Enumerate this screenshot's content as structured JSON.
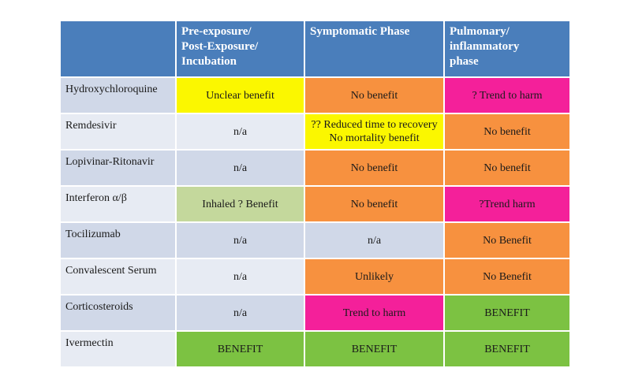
{
  "table": {
    "header": [
      "Pre-exposure/\nPost-Exposure/\nIncubation",
      "Symptomatic Phase",
      "Pulmonary/\ninflammatory\nphase"
    ],
    "rows": [
      {
        "label": "Hydroxychloroquine",
        "cells": [
          {
            "text": "Unclear benefit",
            "color": "#fbf700"
          },
          {
            "text": "No benefit",
            "color": "#f7913f"
          },
          {
            "text": "? Trend to harm",
            "color": "#f4209a"
          }
        ]
      },
      {
        "label": "Remdesivir",
        "cells": [
          {
            "text": "n/a",
            "color": "#e7ebf3"
          },
          {
            "text": "?? Reduced time to recovery\nNo mortality benefit",
            "color": "#fbf700"
          },
          {
            "text": "No benefit",
            "color": "#f7913f"
          }
        ]
      },
      {
        "label": "Lopivinar-Ritonavir",
        "cells": [
          {
            "text": "n/a",
            "color": "#d0d8e8"
          },
          {
            "text": "No benefit",
            "color": "#f7913f"
          },
          {
            "text": "No benefit",
            "color": "#f7913f"
          }
        ]
      },
      {
        "label": "Interferon α/β",
        "cells": [
          {
            "text": "Inhaled ? Benefit",
            "color": "#c4d89c"
          },
          {
            "text": "No benefit",
            "color": "#f7913f"
          },
          {
            "text": "?Trend harm",
            "color": "#f4209a"
          }
        ]
      },
      {
        "label": "Tocilizumab",
        "cells": [
          {
            "text": "n/a",
            "color": "#d0d8e8"
          },
          {
            "text": "n/a",
            "color": "#d0d8e8"
          },
          {
            "text": "No Benefit",
            "color": "#f7913f"
          }
        ]
      },
      {
        "label": "Convalescent Serum",
        "cells": [
          {
            "text": "n/a",
            "color": "#e7ebf3"
          },
          {
            "text": "Unlikely",
            "color": "#f7913f"
          },
          {
            "text": "No Benefit",
            "color": "#f7913f"
          }
        ]
      },
      {
        "label": "Corticosteroids",
        "cells": [
          {
            "text": "n/a",
            "color": "#d0d8e8"
          },
          {
            "text": "Trend to harm",
            "color": "#f4209a"
          },
          {
            "text": "BENEFIT",
            "color": "#7cc242"
          }
        ]
      },
      {
        "label": "Ivermectin",
        "cells": [
          {
            "text": "BENEFIT",
            "color": "#7cc242"
          },
          {
            "text": "BENEFIT",
            "color": "#7cc242"
          },
          {
            "text": "BENEFIT",
            "color": "#7cc242"
          }
        ]
      }
    ]
  }
}
